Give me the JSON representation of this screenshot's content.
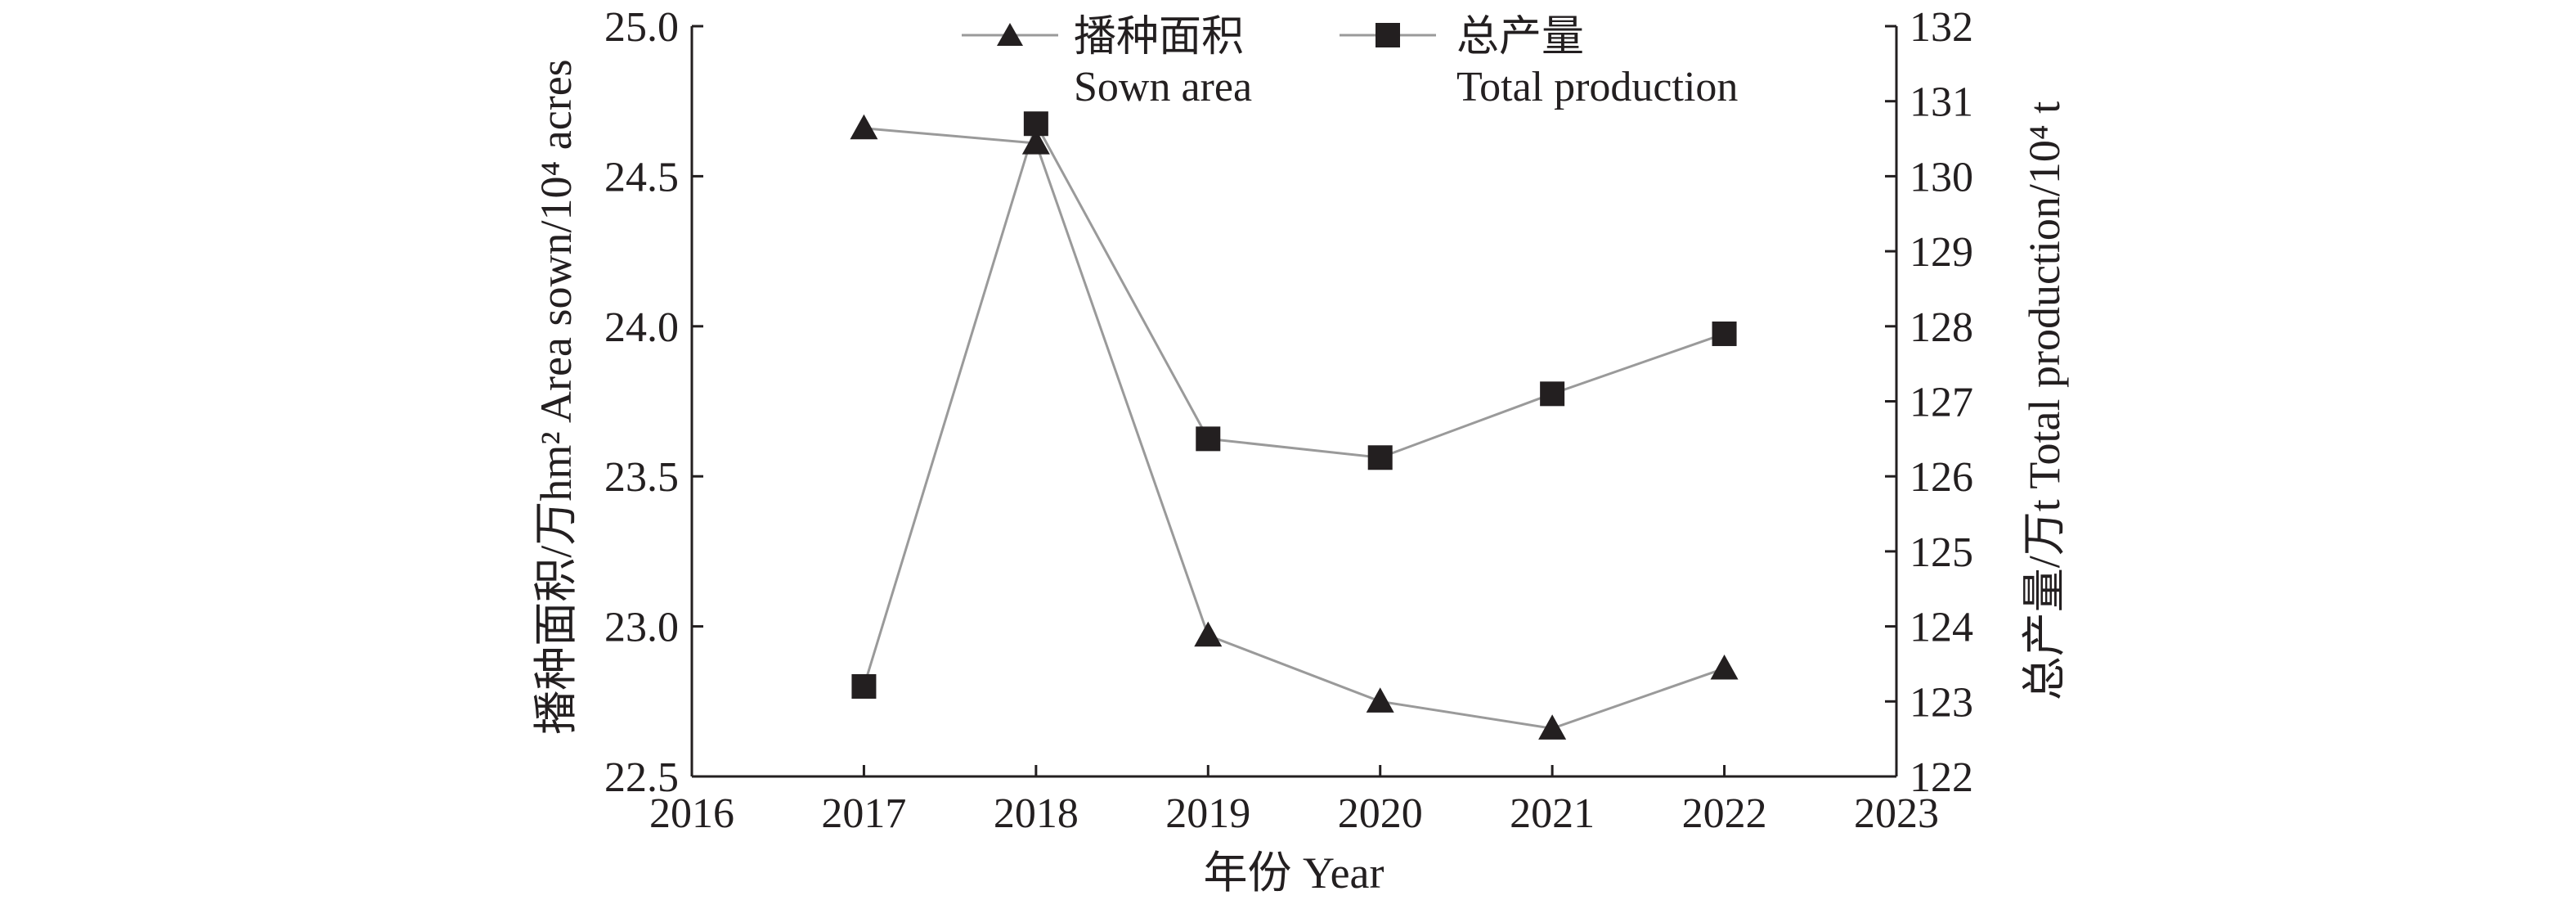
{
  "chart_data": {
    "type": "line",
    "x": [
      2017,
      2018,
      2019,
      2020,
      2021,
      2022
    ],
    "xlim": [
      2016,
      2023
    ],
    "x_ticks": [
      "2016",
      "2017",
      "2018",
      "2019",
      "2020",
      "2021",
      "2022",
      "2023"
    ],
    "xlabel": "年份 Year",
    "y_left": {
      "label": "播种面积/万hm² Area sown/10⁴ acres",
      "ylim": [
        22.5,
        25.0
      ],
      "ticks": [
        "22.5",
        "23.0",
        "23.5",
        "24.0",
        "24.5",
        "25.0"
      ]
    },
    "y_right": {
      "label": "总产量/万t Total production/10⁴ t",
      "ylim": [
        122,
        132
      ],
      "ticks": [
        "122",
        "123",
        "124",
        "125",
        "126",
        "127",
        "128",
        "129",
        "130",
        "131",
        "132"
      ]
    },
    "series": [
      {
        "name": "播种面积",
        "name_en": "Sown area",
        "axis": "left",
        "marker": "triangle",
        "values": [
          24.66,
          24.61,
          22.97,
          22.75,
          22.66,
          22.86
        ]
      },
      {
        "name": "总产量",
        "name_en": "Total production",
        "axis": "right",
        "marker": "square",
        "values": [
          123.2,
          130.7,
          126.5,
          126.25,
          127.1,
          127.9
        ]
      }
    ],
    "legend_position": "top-center",
    "grid": false,
    "colors": {
      "axis": "#231f20",
      "line": "#9a9a9a",
      "marker": "#231f20"
    }
  }
}
